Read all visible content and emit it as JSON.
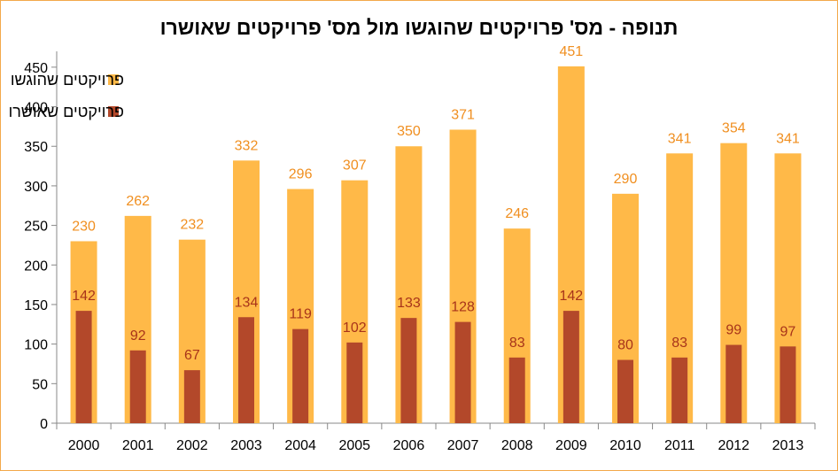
{
  "chart_data": {
    "type": "bar",
    "title": "תנופה - מס' פרויקטים שהוגשו מול מס' פרויקטים שאושרו",
    "categories": [
      "2000",
      "2001",
      "2002",
      "2003",
      "2004",
      "2005",
      "2006",
      "2007",
      "2008",
      "2009",
      "2010",
      "2011",
      "2012",
      "2013"
    ],
    "series": [
      {
        "name": "פרויקטים שהוגשו",
        "color": "#ffb948",
        "label_color": "#f08f20",
        "values": [
          230,
          262,
          232,
          332,
          296,
          307,
          350,
          371,
          246,
          451,
          290,
          341,
          354,
          341
        ]
      },
      {
        "name": "פרויקטים שאושרו",
        "color": "#b3482a",
        "label_color": "#a8341a",
        "values": [
          142,
          92,
          67,
          134,
          119,
          102,
          133,
          128,
          83,
          142,
          80,
          83,
          99,
          97
        ]
      }
    ],
    "yticks": [
      "0",
      "50",
      "100",
      "150",
      "200",
      "250",
      "300",
      "350",
      "400",
      "450"
    ],
    "ylim": [
      0,
      470
    ],
    "grid": false,
    "legend": "top-left",
    "xlabel": "",
    "ylabel": ""
  }
}
